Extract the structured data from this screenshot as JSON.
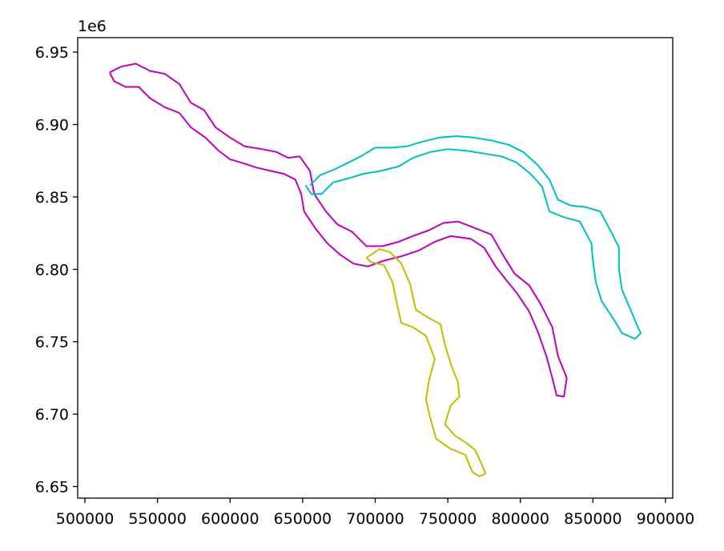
{
  "chart_data": {
    "type": "line",
    "title": "",
    "xlabel": "",
    "ylabel": "",
    "y_offset_text": "1e6",
    "xlim": [
      495000,
      905000
    ],
    "ylim": [
      6642000,
      6960000
    ],
    "x_ticks": [
      500000,
      550000,
      600000,
      650000,
      700000,
      750000,
      800000,
      850000,
      900000
    ],
    "x_tick_labels": [
      "500000",
      "550000",
      "600000",
      "650000",
      "700000",
      "750000",
      "800000",
      "850000",
      "900000"
    ],
    "y_ticks": [
      6650000,
      6700000,
      6750000,
      6800000,
      6850000,
      6900000,
      6950000
    ],
    "y_tick_labels": [
      "6.65",
      "6.70",
      "6.75",
      "6.80",
      "6.85",
      "6.90",
      "6.95"
    ],
    "grid": false,
    "legend": "none",
    "series": [
      {
        "color": "#bf00bf",
        "points": [
          [
            517000,
            6936000
          ],
          [
            525000,
            6940000
          ],
          [
            535000,
            6942000
          ],
          [
            545000,
            6937000
          ],
          [
            555000,
            6935000
          ],
          [
            565000,
            6928000
          ],
          [
            573000,
            6915000
          ],
          [
            582000,
            6910000
          ],
          [
            590000,
            6898000
          ],
          [
            600000,
            6891000
          ],
          [
            610000,
            6885000
          ],
          [
            622000,
            6883000
          ],
          [
            632000,
            6881000
          ],
          [
            640000,
            6877000
          ],
          [
            648000,
            6878000
          ],
          [
            655000,
            6868000
          ],
          [
            658000,
            6852000
          ],
          [
            666000,
            6840000
          ],
          [
            674000,
            6831000
          ],
          [
            684000,
            6826000
          ],
          [
            694000,
            6816000
          ],
          [
            705000,
            6816000
          ],
          [
            716000,
            6819000
          ],
          [
            726000,
            6823000
          ],
          [
            737000,
            6827000
          ],
          [
            747000,
            6832000
          ],
          [
            757000,
            6833000
          ],
          [
            770000,
            6828000
          ],
          [
            780000,
            6824000
          ],
          [
            788000,
            6810000
          ],
          [
            796000,
            6797000
          ],
          [
            806000,
            6789000
          ],
          [
            814000,
            6776000
          ],
          [
            822000,
            6760000
          ],
          [
            826000,
            6740000
          ],
          [
            832000,
            6725000
          ],
          [
            830000,
            6712000
          ],
          [
            825000,
            6713000
          ],
          [
            822000,
            6725000
          ],
          [
            818000,
            6740000
          ],
          [
            812000,
            6757000
          ],
          [
            806000,
            6771000
          ],
          [
            798000,
            6783000
          ],
          [
            790000,
            6793000
          ],
          [
            783000,
            6802000
          ],
          [
            775000,
            6815000
          ],
          [
            766000,
            6821000
          ],
          [
            752000,
            6823000
          ],
          [
            741000,
            6819000
          ],
          [
            730000,
            6813000
          ],
          [
            718000,
            6809000
          ],
          [
            706000,
            6806000
          ],
          [
            695000,
            6802000
          ],
          [
            685000,
            6804000
          ],
          [
            676000,
            6810000
          ],
          [
            667000,
            6818000
          ],
          [
            659000,
            6828000
          ],
          [
            651000,
            6840000
          ],
          [
            649000,
            6852000
          ],
          [
            645000,
            6862000
          ],
          [
            637000,
            6866000
          ],
          [
            628000,
            6868000
          ],
          [
            619000,
            6870000
          ],
          [
            610000,
            6873000
          ],
          [
            600000,
            6876000
          ],
          [
            592000,
            6882000
          ],
          [
            583000,
            6891000
          ],
          [
            573000,
            6898000
          ],
          [
            565000,
            6908000
          ],
          [
            555000,
            6912000
          ],
          [
            545000,
            6918000
          ],
          [
            537000,
            6926000
          ],
          [
            528000,
            6926000
          ],
          [
            520000,
            6930000
          ],
          [
            517000,
            6936000
          ]
        ]
      },
      {
        "color": "#00bfbf",
        "points": [
          [
            655000,
            6858000
          ],
          [
            662000,
            6865000
          ],
          [
            672000,
            6869000
          ],
          [
            680000,
            6873000
          ],
          [
            690000,
            6878000
          ],
          [
            700000,
            6884000
          ],
          [
            712000,
            6884000
          ],
          [
            722000,
            6885000
          ],
          [
            732000,
            6888000
          ],
          [
            744000,
            6891000
          ],
          [
            756000,
            6892000
          ],
          [
            768000,
            6891000
          ],
          [
            780000,
            6889000
          ],
          [
            792000,
            6886000
          ],
          [
            802000,
            6881000
          ],
          [
            812000,
            6872000
          ],
          [
            820000,
            6862000
          ],
          [
            826000,
            6848000
          ],
          [
            835000,
            6844000
          ],
          [
            845000,
            6843000
          ],
          [
            855000,
            6840000
          ],
          [
            863000,
            6825000
          ],
          [
            868000,
            6815000
          ],
          [
            868000,
            6800000
          ],
          [
            870000,
            6786000
          ],
          [
            876000,
            6772000
          ],
          [
            881000,
            6760000
          ],
          [
            883000,
            6756000
          ],
          [
            879000,
            6752000
          ],
          [
            870000,
            6756000
          ],
          [
            864000,
            6766000
          ],
          [
            856000,
            6778000
          ],
          [
            852000,
            6791000
          ],
          [
            850000,
            6806000
          ],
          [
            849000,
            6818000
          ],
          [
            841000,
            6833000
          ],
          [
            830000,
            6836000
          ],
          [
            820000,
            6840000
          ],
          [
            815000,
            6857000
          ],
          [
            807000,
            6866000
          ],
          [
            797000,
            6874000
          ],
          [
            787000,
            6878000
          ],
          [
            775000,
            6880000
          ],
          [
            762000,
            6882000
          ],
          [
            750000,
            6883000
          ],
          [
            738000,
            6881000
          ],
          [
            726000,
            6877000
          ],
          [
            716000,
            6871000
          ],
          [
            704000,
            6868000
          ],
          [
            692000,
            6866000
          ],
          [
            682000,
            6863000
          ],
          [
            671000,
            6860000
          ],
          [
            663000,
            6852000
          ],
          [
            656000,
            6852000
          ],
          [
            652000,
            6858000
          ]
        ]
      },
      {
        "color": "#bfbf00",
        "points": [
          [
            694000,
            6808000
          ],
          [
            703000,
            6814000
          ],
          [
            710000,
            6812000
          ],
          [
            718000,
            6804000
          ],
          [
            724000,
            6790000
          ],
          [
            728000,
            6772000
          ],
          [
            736000,
            6767000
          ],
          [
            745000,
            6762000
          ],
          [
            748000,
            6748000
          ],
          [
            752000,
            6735000
          ],
          [
            757000,
            6722000
          ],
          [
            758000,
            6712000
          ],
          [
            752000,
            6706000
          ],
          [
            748000,
            6693000
          ],
          [
            755000,
            6685000
          ],
          [
            763000,
            6680000
          ],
          [
            769000,
            6675000
          ],
          [
            774000,
            6664000
          ],
          [
            776000,
            6659000
          ],
          [
            772000,
            6657000
          ],
          [
            767000,
            6660000
          ],
          [
            762000,
            6672000
          ],
          [
            752000,
            6676000
          ],
          [
            742000,
            6683000
          ],
          [
            738000,
            6697000
          ],
          [
            735000,
            6710000
          ],
          [
            737000,
            6723000
          ],
          [
            741000,
            6738000
          ],
          [
            735000,
            6754000
          ],
          [
            726000,
            6760000
          ],
          [
            718000,
            6763000
          ],
          [
            715000,
            6776000
          ],
          [
            712000,
            6791000
          ],
          [
            706000,
            6803000
          ],
          [
            697000,
            6805000
          ],
          [
            694000,
            6808000
          ]
        ]
      }
    ]
  }
}
